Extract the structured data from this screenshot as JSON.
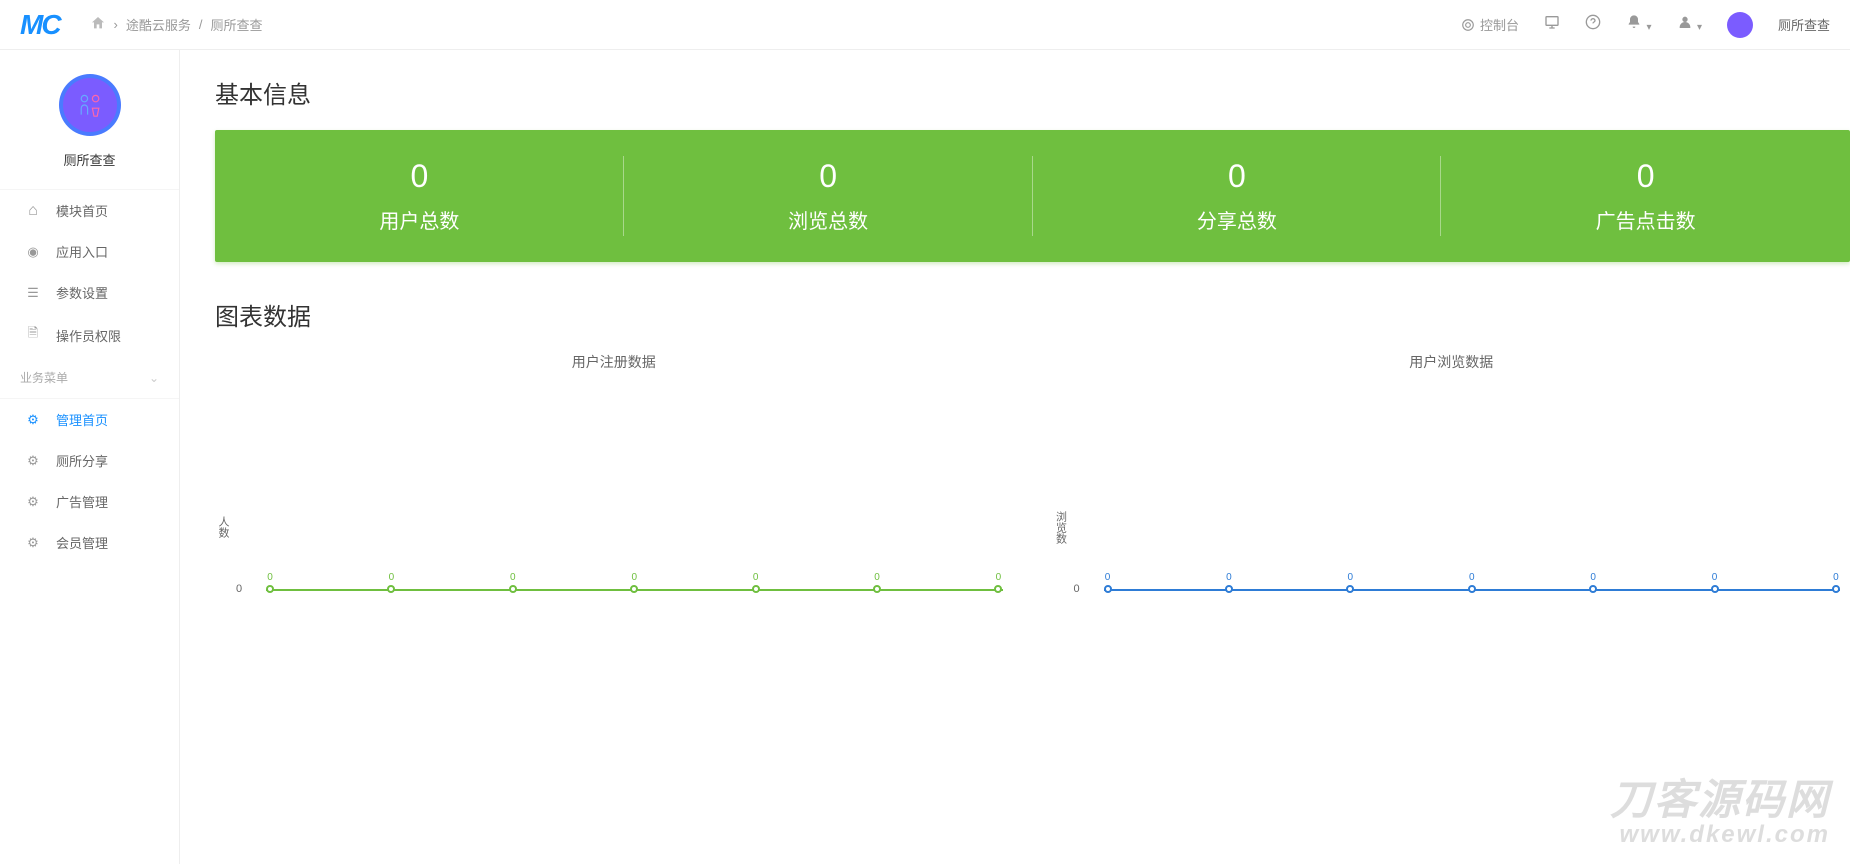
{
  "header": {
    "logo": "MC",
    "breadcrumb_service": "途酷云服务",
    "breadcrumb_app": "厕所查查",
    "control_panel": "控制台",
    "app_name_right": "厕所查查"
  },
  "sidebar": {
    "app_name": "厕所查查",
    "main_items": [
      {
        "label": "模块首页",
        "icon": "home"
      },
      {
        "label": "应用入口",
        "icon": "entry"
      },
      {
        "label": "参数设置",
        "icon": "list"
      },
      {
        "label": "操作员权限",
        "icon": "doc"
      }
    ],
    "section_title": "业务菜单",
    "biz_items": [
      {
        "label": "管理首页",
        "icon": "gear",
        "active": true
      },
      {
        "label": "厕所分享",
        "icon": "gear"
      },
      {
        "label": "广告管理",
        "icon": "gear"
      },
      {
        "label": "会员管理",
        "icon": "gear"
      }
    ]
  },
  "basic_info": {
    "title": "基本信息",
    "bg_color": "#6fbf3f",
    "stats": [
      {
        "value": "0",
        "label": "用户总数"
      },
      {
        "value": "0",
        "label": "浏览总数"
      },
      {
        "value": "0",
        "label": "分享总数"
      },
      {
        "value": "0",
        "label": "广告点击数"
      }
    ]
  },
  "chart_data": {
    "title": "图表数据",
    "chart1": {
      "title": "用户注册数据",
      "type": "line",
      "ylabel": "人数",
      "color": "#6fbf3f",
      "ylim": [
        0,
        0
      ],
      "ytick_label": "0",
      "baseline_pct": 72,
      "points": [
        0,
        0,
        0,
        0,
        0,
        0,
        0
      ]
    },
    "chart2": {
      "title": "用户浏览数据",
      "type": "line",
      "ylabel": "浏览数",
      "color": "#2e7cd6",
      "ylim": [
        0,
        0
      ],
      "ytick_label": "0",
      "baseline_pct": 72,
      "points": [
        0,
        0,
        0,
        0,
        0,
        0,
        0
      ]
    }
  },
  "watermark": {
    "main": "刀客源码网",
    "sub": "www.dkewl.com"
  }
}
